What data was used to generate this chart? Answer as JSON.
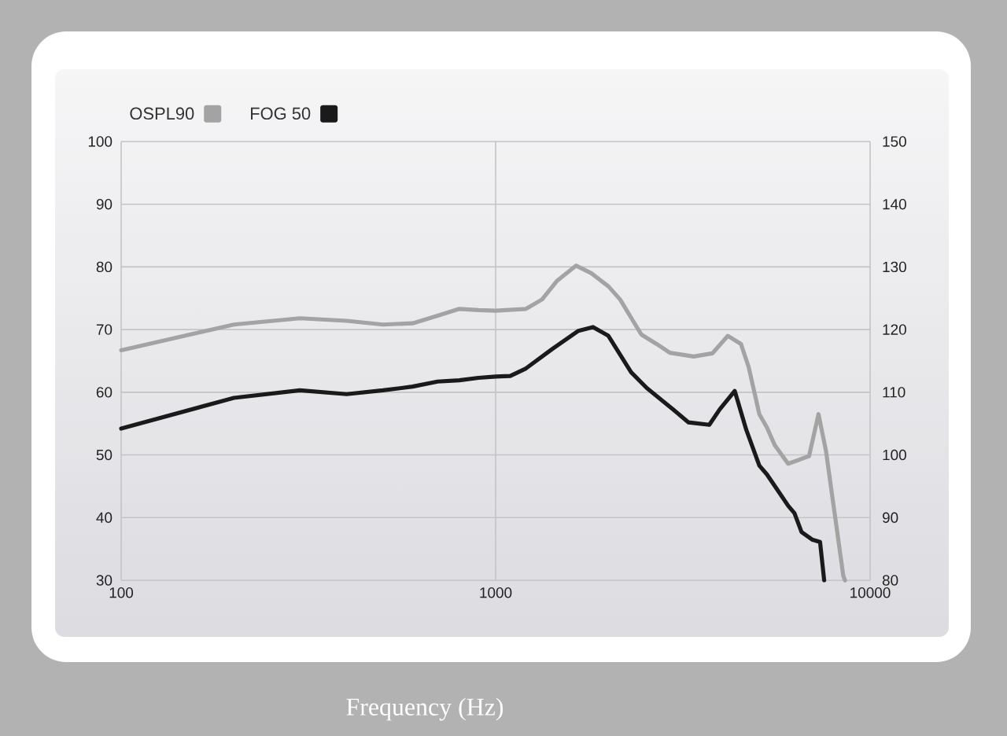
{
  "chart_data": {
    "type": "line",
    "xlabel": "Frequency (Hz)",
    "series": [
      {
        "name": "OSPL90",
        "color": "#a3a3a3",
        "axis": "y2",
        "x": [
          100,
          200,
          300,
          400,
          500,
          600,
          700,
          800,
          900,
          1000,
          1205,
          1330,
          1460,
          1640,
          1800,
          2000,
          2150,
          2300,
          2450,
          2690,
          2920,
          3380,
          3790,
          4170,
          4520,
          4740,
          5060,
          5300,
          5570,
          6040,
          6870,
          7280,
          7620,
          8480,
          8570
        ],
        "values": [
          116.7,
          120.8,
          121.8,
          121.4,
          120.8,
          121,
          122.2,
          123.3,
          123.1,
          123,
          123.3,
          124.8,
          127.8,
          130.2,
          129,
          126.9,
          124.8,
          121.9,
          119.2,
          117.7,
          116.3,
          115.7,
          116.2,
          119,
          117.7,
          114,
          106.5,
          104.4,
          101.5,
          98.6,
          99.8,
          106.5,
          100.7,
          80.7,
          80
        ]
      },
      {
        "name": "FOG 50",
        "color": "#1a1a1a",
        "x": [
          100,
          200,
          300,
          400,
          500,
          600,
          700,
          800,
          900,
          1000,
          1094,
          1205,
          1416,
          1664,
          1820,
          2000,
          2300,
          2530,
          2970,
          3270,
          3720,
          3970,
          4350,
          4670,
          5060,
          5300,
          5660,
          6040,
          6280,
          6560,
          7000,
          7350,
          7540
        ],
        "values": [
          54.2,
          59.1,
          60.3,
          59.7,
          60.3,
          60.9,
          61.7,
          61.9,
          62.3,
          62.5,
          62.6,
          63.8,
          66.9,
          69.8,
          70.4,
          69,
          63.2,
          60.7,
          57.3,
          55.2,
          54.8,
          57.3,
          60.2,
          54,
          48.3,
          46.9,
          44.4,
          41.9,
          40.7,
          37.7,
          36.5,
          36.1,
          30
        ]
      }
    ],
    "xlim": [
      100,
      10000
    ],
    "xticks": [
      100,
      1000,
      10000
    ],
    "ylim": [
      30,
      100
    ],
    "yticks": [
      30,
      40,
      50,
      60,
      70,
      80,
      90,
      100
    ],
    "y2lim": [
      80,
      150
    ],
    "y2ticks": [
      80,
      90,
      100,
      110,
      120,
      130,
      140,
      150
    ],
    "log": "x",
    "grid": true,
    "legend": "top left"
  }
}
